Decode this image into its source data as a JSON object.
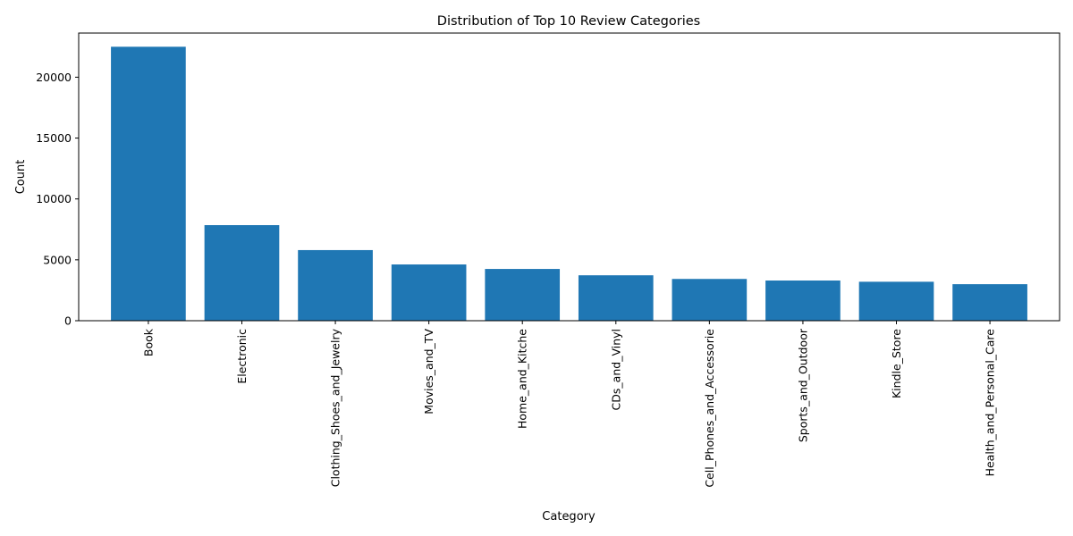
{
  "chart_data": {
    "type": "bar",
    "title": "Distribution of Top 10 Review Categories",
    "xlabel": "Category",
    "ylabel": "Count",
    "categories": [
      "Book",
      "Electronic",
      "Clothing_Shoes_and_Jewelry",
      "Movies_and_TV",
      "Home_and_Kitche",
      "CDs_and_Vinyl",
      "Cell_Phones_and_Accessorie",
      "Sports_and_Outdoor",
      "Kindle_Store",
      "Health_and_Personal_Care"
    ],
    "values": [
      22500,
      7850,
      5800,
      4620,
      4250,
      3730,
      3430,
      3300,
      3200,
      3000
    ],
    "ylim": [
      0,
      23625
    ],
    "yticks": [
      0,
      5000,
      10000,
      15000,
      20000
    ],
    "grid": false,
    "legend": "none",
    "bar_color": "#1f77b4",
    "axis_color": "#000000"
  }
}
